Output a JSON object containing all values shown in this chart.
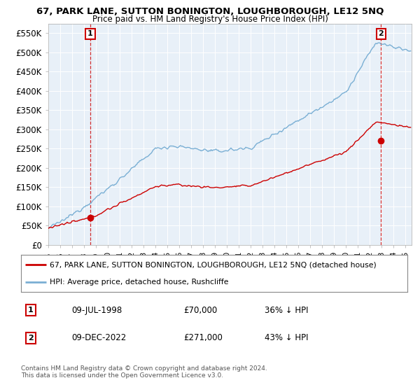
{
  "title": "67, PARK LANE, SUTTON BONINGTON, LOUGHBOROUGH, LE12 5NQ",
  "subtitle": "Price paid vs. HM Land Registry's House Price Index (HPI)",
  "ylim": [
    0,
    575000
  ],
  "yticks": [
    0,
    50000,
    100000,
    150000,
    200000,
    250000,
    300000,
    350000,
    400000,
    450000,
    500000,
    550000
  ],
  "ytick_labels": [
    "£0",
    "£50K",
    "£100K",
    "£150K",
    "£200K",
    "£250K",
    "£300K",
    "£350K",
    "£400K",
    "£450K",
    "£500K",
    "£550K"
  ],
  "property_color": "#cc0000",
  "hpi_color": "#7aafd4",
  "background_color": "#ffffff",
  "plot_bg_color": "#e8f0f8",
  "grid_color": "#ffffff",
  "transaction1": {
    "date_num": 1998.52,
    "price": 70000,
    "label": "1",
    "year_label": "09-JUL-1998",
    "price_label": "£70,000",
    "note": "36% ↓ HPI"
  },
  "transaction2": {
    "date_num": 2022.94,
    "price": 271000,
    "label": "2",
    "year_label": "09-DEC-2022",
    "price_label": "£271,000",
    "note": "43% ↓ HPI"
  },
  "legend_property": "67, PARK LANE, SUTTON BONINGTON, LOUGHBOROUGH, LE12 5NQ (detached house)",
  "legend_hpi": "HPI: Average price, detached house, Rushcliffe",
  "footer1": "Contains HM Land Registry data © Crown copyright and database right 2024.",
  "footer2": "This data is licensed under the Open Government Licence v3.0.",
  "xlim_start": 1995.0,
  "xlim_end": 2025.5
}
